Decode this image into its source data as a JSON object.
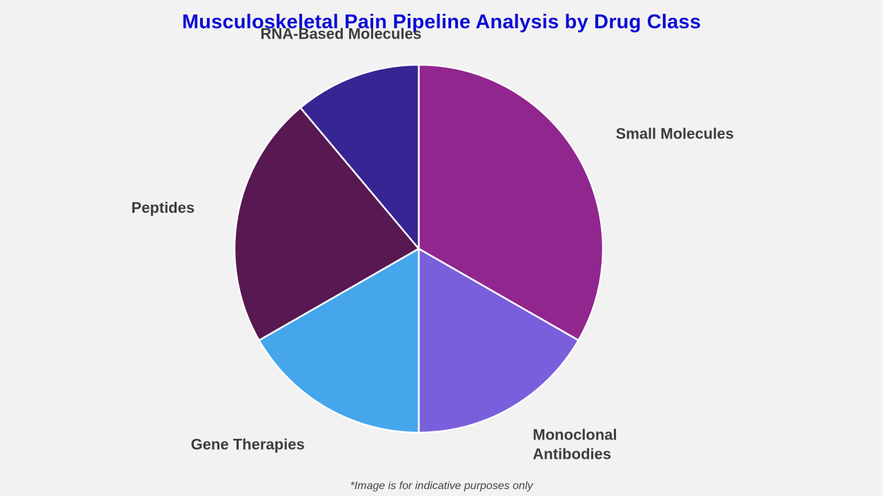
{
  "chart_data": {
    "type": "pie",
    "title": "Musculoskeletal Pain Pipeline Analysis by Drug Class",
    "categories": [
      "Small Molecules",
      "Monoclonal Antibodies",
      "Gene Therapies",
      "Peptides",
      "RNA-Based Molecules"
    ],
    "label_lines": [
      [
        "Small Molecules"
      ],
      [
        "Monoclonal",
        "Antibodies"
      ],
      [
        "Gene Therapies"
      ],
      [
        "Peptides"
      ],
      [
        "RNA-Based Molecules"
      ]
    ],
    "values": [
      33.3,
      16.7,
      16.7,
      22.2,
      11.1
    ],
    "colors": [
      "#91268f",
      "#7a5fdc",
      "#46a6ec",
      "#581852",
      "#372594"
    ],
    "start_angle_deg": 0,
    "direction": "clockwise",
    "legend": "none"
  },
  "footnote": "*Image is for indicative purposes only"
}
